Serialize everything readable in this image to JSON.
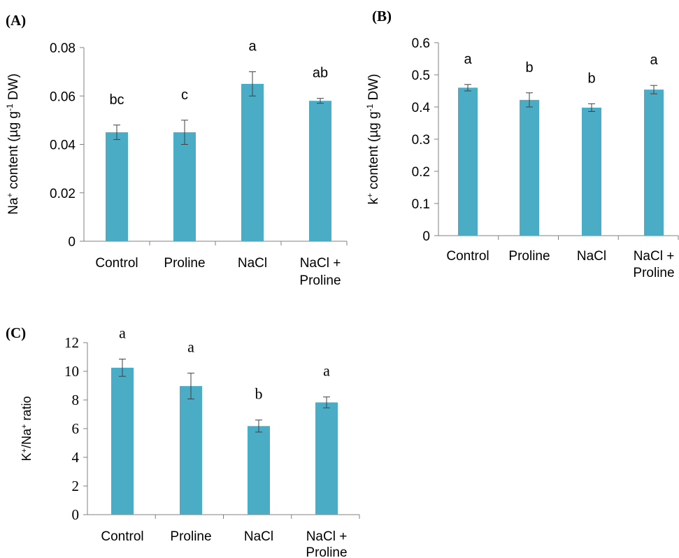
{
  "figure": {
    "bar_color": "#4bacc6",
    "error_color": "#404040",
    "axis_color": "#808080"
  },
  "chart_data": [
    {
      "type": "bar",
      "panel_label": "(A)",
      "title": "",
      "xlabel": "",
      "ylabel_parts": [
        "Na",
        "+",
        " content (µg g",
        "-1",
        " DW)"
      ],
      "categories": [
        [
          "Control"
        ],
        [
          "Proline"
        ],
        [
          "NaCl"
        ],
        [
          "NaCl +",
          "Proline"
        ]
      ],
      "values": [
        0.045,
        0.045,
        0.065,
        0.058
      ],
      "errors": [
        0.003,
        0.005,
        0.005,
        0.001
      ],
      "letters": [
        "bc",
        "c",
        "a",
        "ab"
      ],
      "ylim": [
        0,
        0.08
      ],
      "yticks": [
        "0",
        "0.02",
        "0.04",
        "0.06",
        "0.08"
      ],
      "tick_font": "sans",
      "grid": false
    },
    {
      "type": "bar",
      "panel_label": "(B)",
      "title": "",
      "xlabel": "",
      "ylabel_parts": [
        "k",
        "+",
        " content (µg g",
        "-1",
        " DW)"
      ],
      "categories": [
        [
          "Control"
        ],
        [
          "Proline"
        ],
        [
          "NaCl"
        ],
        [
          "NaCl +",
          "Proline"
        ]
      ],
      "values": [
        0.46,
        0.422,
        0.398,
        0.454
      ],
      "errors": [
        0.01,
        0.022,
        0.012,
        0.013
      ],
      "letters": [
        "a",
        "b",
        "b",
        "a"
      ],
      "ylim": [
        0,
        0.6
      ],
      "yticks": [
        "0",
        "0.1",
        "0.2",
        "0.3",
        "0.4",
        "0.5",
        "0.6"
      ],
      "tick_font": "sans",
      "grid": false
    },
    {
      "type": "bar",
      "panel_label": "(C)",
      "title": "",
      "xlabel": "",
      "ylabel_parts": [
        "K",
        "+",
        "/Na",
        "+",
        " ratio"
      ],
      "categories": [
        [
          "Control"
        ],
        [
          "Proline"
        ],
        [
          "NaCl"
        ],
        [
          "NaCl +",
          "Proline"
        ]
      ],
      "values": [
        10.25,
        8.97,
        6.18,
        7.83
      ],
      "errors": [
        0.6,
        0.9,
        0.42,
        0.38
      ],
      "letters": [
        "a",
        "a",
        "b",
        "a"
      ],
      "ylim": [
        0,
        12
      ],
      "yticks": [
        "0",
        "2",
        "4",
        "6",
        "8",
        "10",
        "12"
      ],
      "tick_font": "serif",
      "grid": false
    }
  ]
}
